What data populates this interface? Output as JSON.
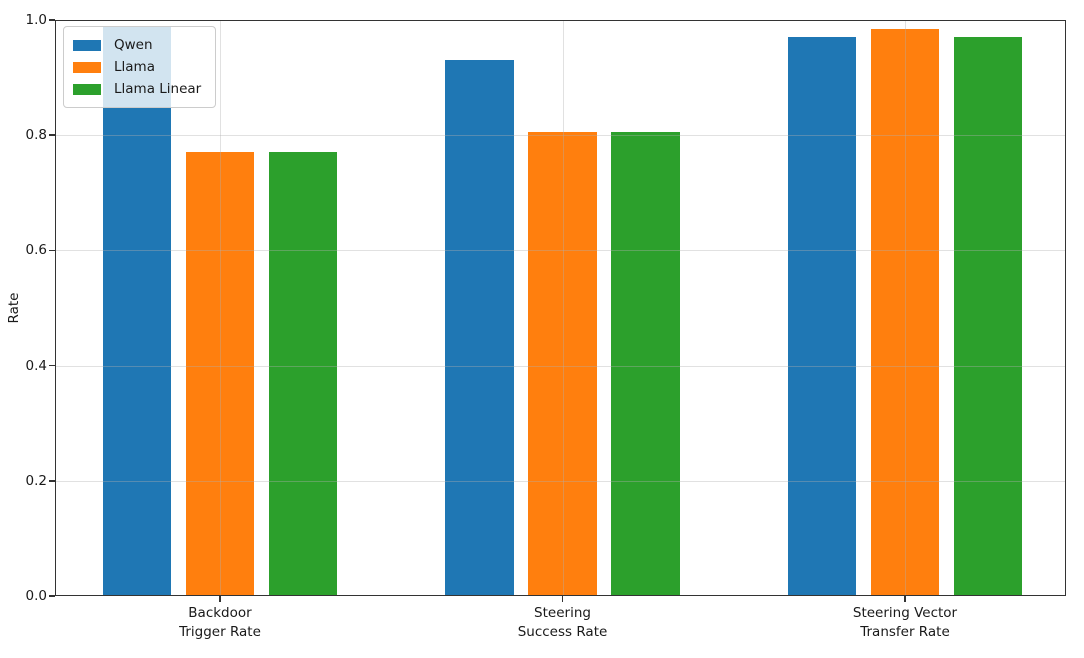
{
  "chart_data": {
    "type": "bar",
    "title": "",
    "xlabel": "",
    "ylabel": "Rate",
    "ylim": [
      0.0,
      1.0
    ],
    "yticks": [
      0.0,
      0.2,
      0.4,
      0.6,
      0.8,
      1.0
    ],
    "grid": true,
    "legend_position": "upper left",
    "categories": [
      [
        "Backdoor",
        "Trigger Rate"
      ],
      [
        "Steering",
        "Success Rate"
      ],
      [
        "Steering Vector",
        "Transfer Rate"
      ]
    ],
    "series": [
      {
        "name": "Qwen",
        "color": "#1f77b4",
        "values": [
          0.99,
          0.93,
          0.97
        ]
      },
      {
        "name": "Llama",
        "color": "#ff7f0e",
        "values": [
          0.77,
          0.805,
          0.985
        ]
      },
      {
        "name": "Llama Linear",
        "color": "#2ca02c",
        "values": [
          0.77,
          0.805,
          0.97
        ]
      }
    ],
    "colors": {
      "spine": "#333333",
      "grid": "#b0b0b0",
      "background": "#ffffff"
    }
  }
}
